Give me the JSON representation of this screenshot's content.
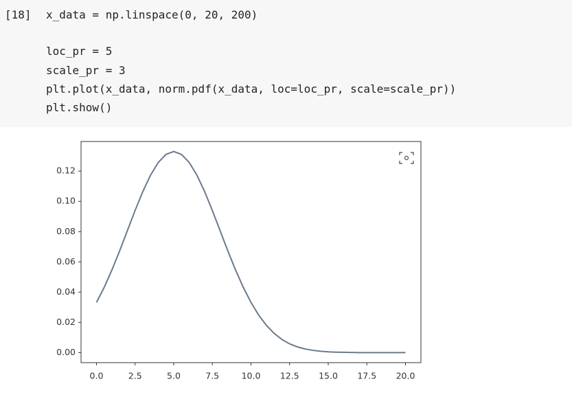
{
  "code_cell": {
    "prompt": "[18]",
    "lines": [
      "x_data = np.linspace(0, 20, 200)",
      "loc_pr = 5",
      "scale_pr = 3",
      "plt.plot(x_data, norm.pdf(x_data, loc=loc_pr, scale=scale_pr))",
      "plt.show()"
    ]
  },
  "chart_data": {
    "type": "line",
    "x": [
      0,
      0.5,
      1,
      1.5,
      2,
      2.5,
      3,
      3.5,
      4,
      4.5,
      5,
      5.5,
      6,
      6.5,
      7,
      7.5,
      8,
      8.5,
      9,
      9.5,
      10,
      10.5,
      11,
      11.5,
      12,
      12.5,
      13,
      13.5,
      14,
      14.5,
      15,
      15.5,
      16,
      16.5,
      17,
      17.5,
      18,
      18.5,
      19,
      19.5,
      20
    ],
    "series": [
      {
        "color": "#687a8c",
        "values": [
          0.0332,
          0.0432,
          0.0547,
          0.0673,
          0.0807,
          0.094,
          0.1065,
          0.1174,
          0.1258,
          0.1311,
          0.133,
          0.1311,
          0.1258,
          0.1174,
          0.1065,
          0.094,
          0.0807,
          0.0673,
          0.0547,
          0.0432,
          0.0332,
          0.0248,
          0.018,
          0.0127,
          0.0087,
          0.0058,
          0.0038,
          0.0024,
          0.0015,
          0.0009,
          0.0005,
          0.0003,
          0.0002,
          0.0001,
          0,
          0,
          0,
          0,
          0,
          0,
          0
        ]
      }
    ],
    "xlim": [
      -1,
      21
    ],
    "ylim": [
      -0.00665,
      0.13963
    ],
    "xticks": [
      {
        "value": 0,
        "label": "0.0"
      },
      2.5,
      {
        "value": 5,
        "label": "5.0"
      },
      7.5,
      {
        "value": 10,
        "label": "10.0"
      },
      12.5,
      {
        "value": 15,
        "label": "15.0"
      },
      17.5,
      {
        "value": 20,
        "label": "20.0"
      }
    ],
    "yticks": [
      {
        "value": 0,
        "label": "0.00"
      },
      0.02,
      0.04,
      0.06,
      0.08,
      {
        "value": 0.1,
        "label": "0.10"
      },
      0.12
    ],
    "grid": false
  }
}
